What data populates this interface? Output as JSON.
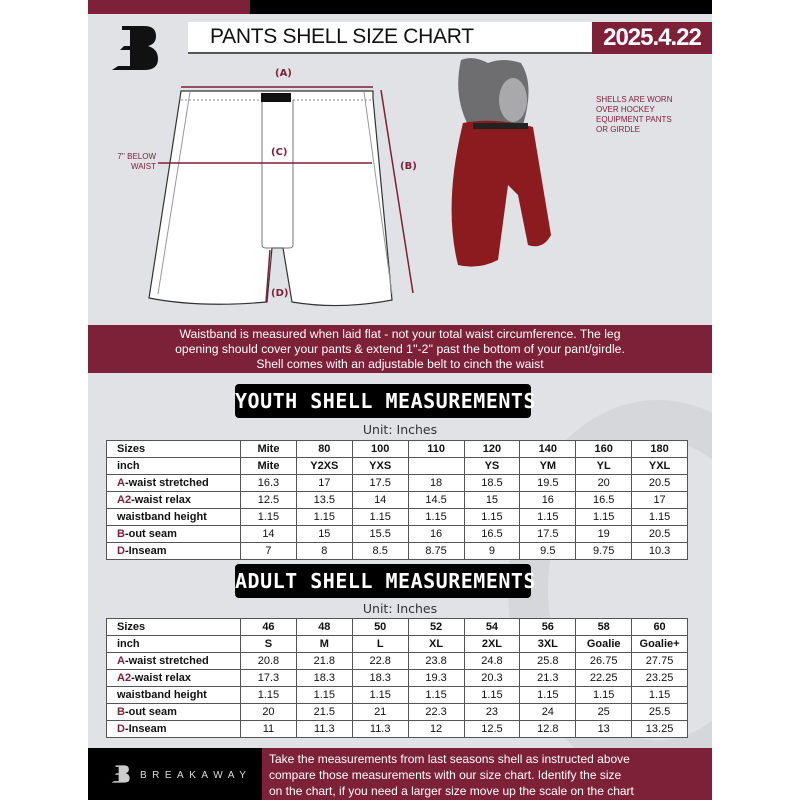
{
  "header": {
    "title": "PANTS SHELL SIZE CHART",
    "date": "2025.4.22"
  },
  "diagram": {
    "label_a": "(A)",
    "label_b": "(B)",
    "label_c": "(C)",
    "label_d": "(D)",
    "below_waist_line1": "7'' BELOW",
    "below_waist_line2": "WAIST"
  },
  "photo_note": [
    "SHELLS ARE WORN",
    "OVER HOCKEY",
    "EQUIPMENT PANTS",
    "OR GIRDLE"
  ],
  "banner": [
    "Waistband is measured when laid flat - not your total waist circumference. The leg",
    "opening should cover your pants & extend 1''-2'' past the bottom of your pant/girdle.",
    "Shell comes with an adjustable belt to cinch the waist"
  ],
  "youth": {
    "title": "YOUTH SHELL MEASUREMENTS",
    "unit": "Unit: Inches",
    "rows": [
      {
        "p": "",
        "l": "Sizes",
        "v": [
          "Mite",
          "80",
          "100",
          "110",
          "120",
          "140",
          "160",
          "180"
        ]
      },
      {
        "p": "",
        "l": "inch",
        "v": [
          "Mite",
          "Y2XS",
          "YXS",
          "",
          "YS",
          "YM",
          "YL",
          "YXL"
        ]
      },
      {
        "p": "A",
        "l": "-waist stretched",
        "v": [
          "16.3",
          "17",
          "17.5",
          "18",
          "18.5",
          "19.5",
          "20",
          "20.5"
        ]
      },
      {
        "p": "A2",
        "l": "-waist relax",
        "v": [
          "12.5",
          "13.5",
          "14",
          "14.5",
          "15",
          "16",
          "16.5",
          "17"
        ]
      },
      {
        "p": "",
        "l": "waistband height",
        "v": [
          "1.15",
          "1.15",
          "1.15",
          "1.15",
          "1.15",
          "1.15",
          "1.15",
          "1.15"
        ]
      },
      {
        "p": "B",
        "l": "-out seam",
        "v": [
          "14",
          "15",
          "15.5",
          "16",
          "16.5",
          "17.5",
          "19",
          "20.5"
        ]
      },
      {
        "p": "D",
        "l": "-Inseam",
        "v": [
          "7",
          "8",
          "8.5",
          "8.75",
          "9",
          "9.5",
          "9.75",
          "10.3"
        ]
      }
    ]
  },
  "adult": {
    "title": "ADULT SHELL MEASUREMENTS",
    "unit": "Unit: Inches",
    "rows": [
      {
        "p": "",
        "l": "Sizes",
        "v": [
          "46",
          "48",
          "50",
          "52",
          "54",
          "56",
          "58",
          "60"
        ]
      },
      {
        "p": "",
        "l": "inch",
        "v": [
          "S",
          "M",
          "L",
          "XL",
          "2XL",
          "3XL",
          "Goalie",
          "Goalie+"
        ]
      },
      {
        "p": "A",
        "l": "-waist stretched",
        "v": [
          "20.8",
          "21.8",
          "22.8",
          "23.8",
          "24.8",
          "25.8",
          "26.75",
          "27.75"
        ]
      },
      {
        "p": "A2",
        "l": "-waist relax",
        "v": [
          "17.3",
          "18.3",
          "18.3",
          "19.3",
          "20.3",
          "21.3",
          "22.25",
          "23.25"
        ]
      },
      {
        "p": "",
        "l": "waistband height",
        "v": [
          "1.15",
          "1.15",
          "1.15",
          "1.15",
          "1.15",
          "1.15",
          "1.15",
          "1.15"
        ]
      },
      {
        "p": "B",
        "l": "-out seam",
        "v": [
          "20",
          "21.5",
          "21",
          "22.3",
          "23",
          "24",
          "25",
          "25.5"
        ]
      },
      {
        "p": "D",
        "l": "-Inseam",
        "v": [
          "11",
          "11.3",
          "11.3",
          "12",
          "12.5",
          "12.8",
          "13",
          "13.25"
        ]
      }
    ]
  },
  "footer": {
    "brand": "BREAKAWAY",
    "text": [
      "Take the measurements from last seasons shell as instructed above",
      "compare those measurements  with our size chart. Identify the size",
      "on the chart, if you need a larger size move up the scale on the chart"
    ]
  },
  "colors": {
    "accent": "#7d2139",
    "background": "#e1e2e6",
    "dark": "#000000"
  }
}
